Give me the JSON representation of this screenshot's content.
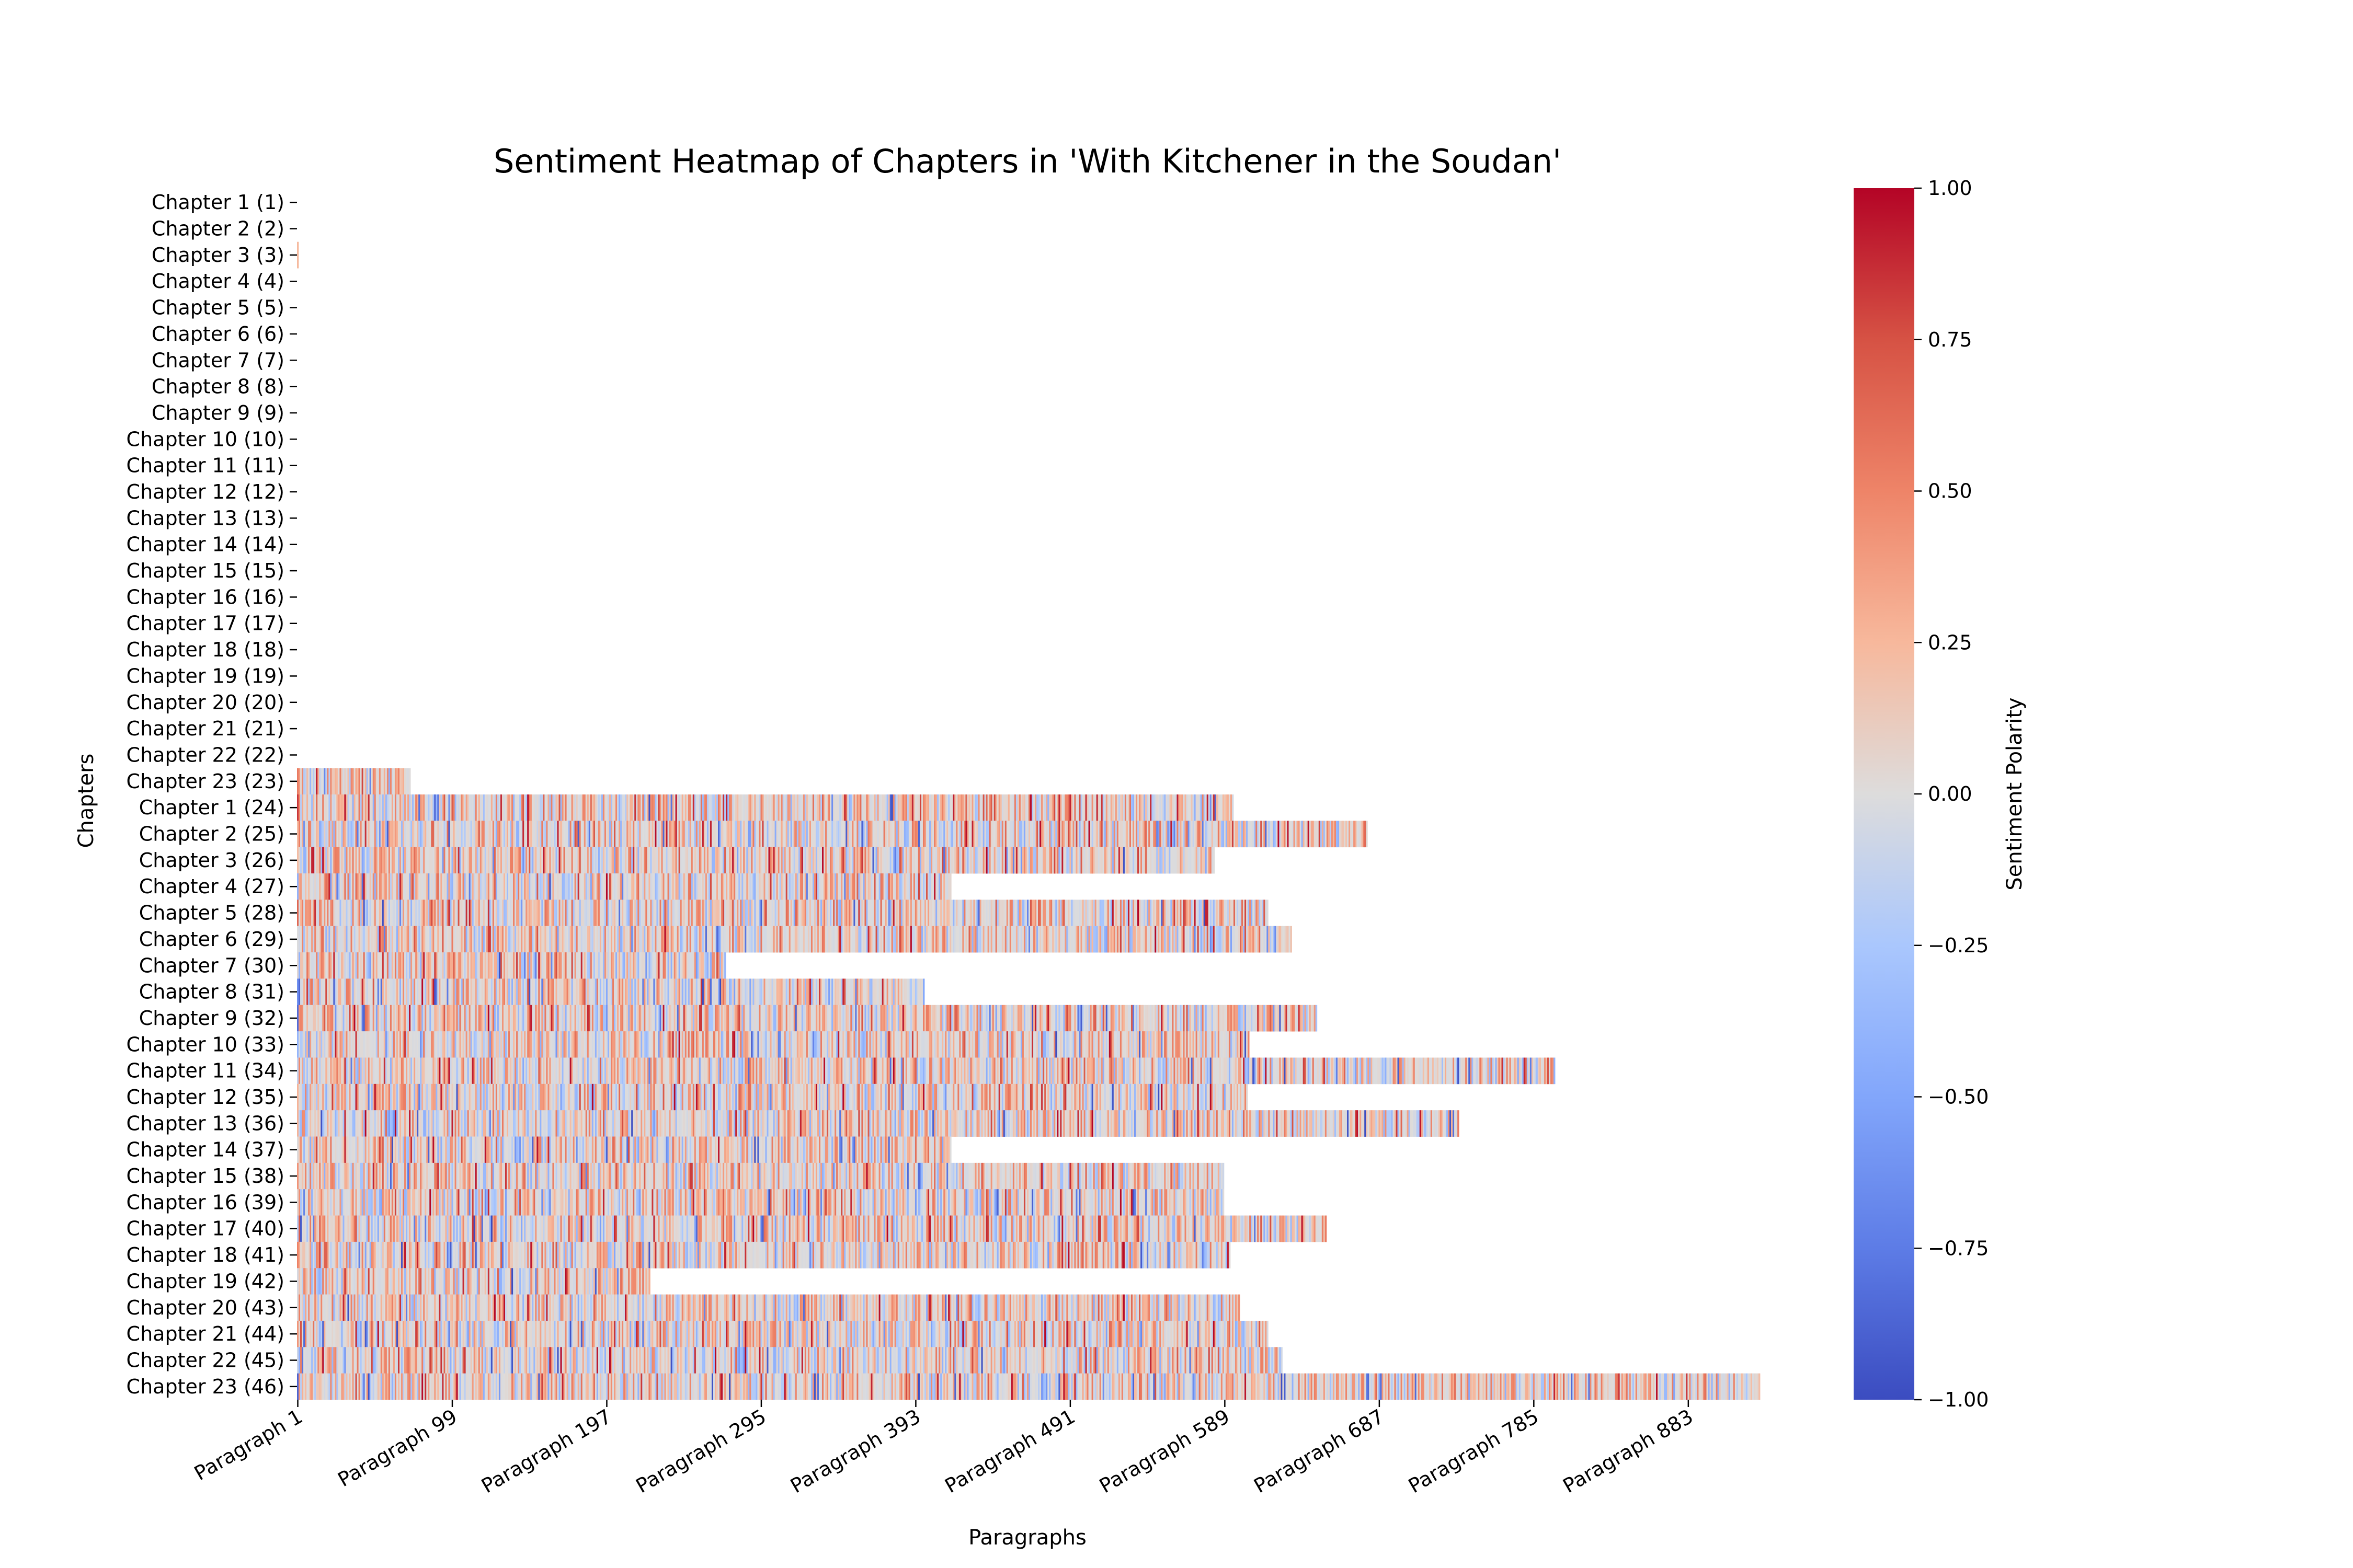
{
  "chart_data": {
    "type": "heatmap",
    "title": "Sentiment Heatmap of Chapters in 'With Kitchener in the Soudan'",
    "xlabel": "Paragraphs",
    "ylabel": "Chapters",
    "colorbar_label": "Sentiment Polarity",
    "colormap": "coolwarm",
    "vmin": -1.0,
    "vmax": 1.0,
    "n_columns": 928,
    "x_tick_labels": [
      "Paragraph 1",
      "Paragraph 99",
      "Paragraph 197",
      "Paragraph 295",
      "Paragraph 393",
      "Paragraph 491",
      "Paragraph 589",
      "Paragraph 687",
      "Paragraph 785",
      "Paragraph 883"
    ],
    "x_tick_index": [
      0,
      98,
      196,
      294,
      392,
      490,
      588,
      686,
      784,
      882
    ],
    "colorbar_ticks": [
      "1.00",
      "0.75",
      "0.50",
      "0.25",
      "0.00",
      "−0.25",
      "−0.50",
      "−0.75",
      "−1.00"
    ],
    "colorbar_tick_values": [
      1.0,
      0.75,
      0.5,
      0.25,
      0.0,
      -0.25,
      -0.5,
      -0.75,
      -1.0
    ],
    "rows": [
      {
        "label": "Chapter 1 (1)",
        "paragraphs": 0
      },
      {
        "label": "Chapter 2 (2)",
        "paragraphs": 0
      },
      {
        "label": "Chapter 3 (3)",
        "paragraphs": 1
      },
      {
        "label": "Chapter 4 (4)",
        "paragraphs": 0
      },
      {
        "label": "Chapter 5 (5)",
        "paragraphs": 0
      },
      {
        "label": "Chapter 6 (6)",
        "paragraphs": 0
      },
      {
        "label": "Chapter 7 (7)",
        "paragraphs": 0
      },
      {
        "label": "Chapter 8 (8)",
        "paragraphs": 0
      },
      {
        "label": "Chapter 9 (9)",
        "paragraphs": 0
      },
      {
        "label": "Chapter 10 (10)",
        "paragraphs": 0
      },
      {
        "label": "Chapter 11 (11)",
        "paragraphs": 0
      },
      {
        "label": "Chapter 12 (12)",
        "paragraphs": 0
      },
      {
        "label": "Chapter 13 (13)",
        "paragraphs": 0
      },
      {
        "label": "Chapter 14 (14)",
        "paragraphs": 0
      },
      {
        "label": "Chapter 15 (15)",
        "paragraphs": 0
      },
      {
        "label": "Chapter 16 (16)",
        "paragraphs": 0
      },
      {
        "label": "Chapter 17 (17)",
        "paragraphs": 0
      },
      {
        "label": "Chapter 18 (18)",
        "paragraphs": 0
      },
      {
        "label": "Chapter 19 (19)",
        "paragraphs": 0
      },
      {
        "label": "Chapter 20 (20)",
        "paragraphs": 0
      },
      {
        "label": "Chapter 21 (21)",
        "paragraphs": 0
      },
      {
        "label": "Chapter 22 (22)",
        "paragraphs": 0
      },
      {
        "label": "Chapter 23 (23)",
        "paragraphs": 72
      },
      {
        "label": "Chapter 1 (24)",
        "paragraphs": 594
      },
      {
        "label": "Chapter 2 (25)",
        "paragraphs": 679
      },
      {
        "label": "Chapter 3 (26)",
        "paragraphs": 582
      },
      {
        "label": "Chapter 4 (27)",
        "paragraphs": 415
      },
      {
        "label": "Chapter 5 (28)",
        "paragraphs": 616
      },
      {
        "label": "Chapter 6 (29)",
        "paragraphs": 631
      },
      {
        "label": "Chapter 7 (30)",
        "paragraphs": 272
      },
      {
        "label": "Chapter 8 (31)",
        "paragraphs": 398
      },
      {
        "label": "Chapter 9 (32)",
        "paragraphs": 647
      },
      {
        "label": "Chapter 10 (33)",
        "paragraphs": 604
      },
      {
        "label": "Chapter 11 (34)",
        "paragraphs": 798
      },
      {
        "label": "Chapter 12 (35)",
        "paragraphs": 603
      },
      {
        "label": "Chapter 13 (36)",
        "paragraphs": 737
      },
      {
        "label": "Chapter 14 (37)",
        "paragraphs": 415
      },
      {
        "label": "Chapter 15 (38)",
        "paragraphs": 588
      },
      {
        "label": "Chapter 16 (39)",
        "paragraphs": 588
      },
      {
        "label": "Chapter 17 (40)",
        "paragraphs": 653
      },
      {
        "label": "Chapter 18 (41)",
        "paragraphs": 592
      },
      {
        "label": "Chapter 19 (42)",
        "paragraphs": 224
      },
      {
        "label": "Chapter 20 (43)",
        "paragraphs": 598
      },
      {
        "label": "Chapter 21 (44)",
        "paragraphs": 616
      },
      {
        "label": "Chapter 22 (45)",
        "paragraphs": 625
      },
      {
        "label": "Chapter 23 (46)",
        "paragraphs": 928
      }
    ]
  }
}
